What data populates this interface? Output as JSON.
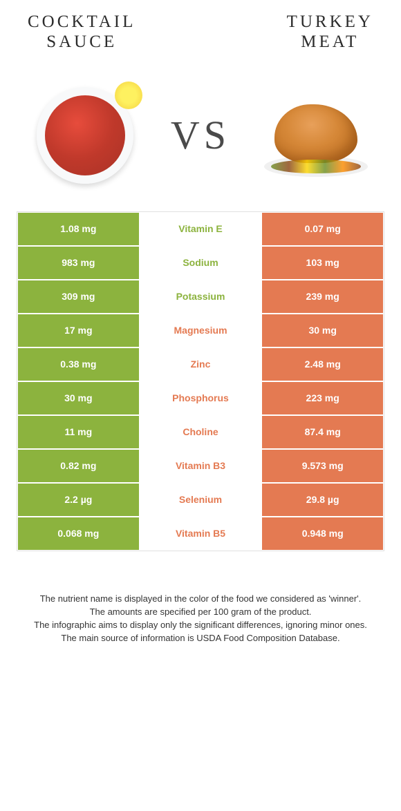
{
  "colors": {
    "left": "#8cb33e",
    "right": "#e47a52",
    "mid_bg": "#ffffff"
  },
  "header": {
    "left_title": "COCKTAIL\nSAUCE",
    "right_title": "TURKEY\nMEAT",
    "vs": "VS"
  },
  "rows": [
    {
      "left": "1.08 mg",
      "label": "Vitamin E",
      "right": "0.07 mg",
      "winner": "left"
    },
    {
      "left": "983 mg",
      "label": "Sodium",
      "right": "103 mg",
      "winner": "left"
    },
    {
      "left": "309 mg",
      "label": "Potassium",
      "right": "239 mg",
      "winner": "left"
    },
    {
      "left": "17 mg",
      "label": "Magnesium",
      "right": "30 mg",
      "winner": "right"
    },
    {
      "left": "0.38 mg",
      "label": "Zinc",
      "right": "2.48 mg",
      "winner": "right"
    },
    {
      "left": "30 mg",
      "label": "Phosphorus",
      "right": "223 mg",
      "winner": "right"
    },
    {
      "left": "11 mg",
      "label": "Choline",
      "right": "87.4 mg",
      "winner": "right"
    },
    {
      "left": "0.82 mg",
      "label": "Vitamin B3",
      "right": "9.573 mg",
      "winner": "right"
    },
    {
      "left": "2.2 µg",
      "label": "Selenium",
      "right": "29.8 µg",
      "winner": "right"
    },
    {
      "left": "0.068 mg",
      "label": "Vitamin B5",
      "right": "0.948 mg",
      "winner": "right"
    }
  ],
  "footer": {
    "line1": "The nutrient name is displayed in the color of the food we considered as 'winner'.",
    "line2": "The amounts are specified per 100 gram of the product.",
    "line3": "The infographic aims to display only the significant differences, ignoring minor ones.",
    "line4": "The main source of information is USDA Food Composition Database."
  }
}
